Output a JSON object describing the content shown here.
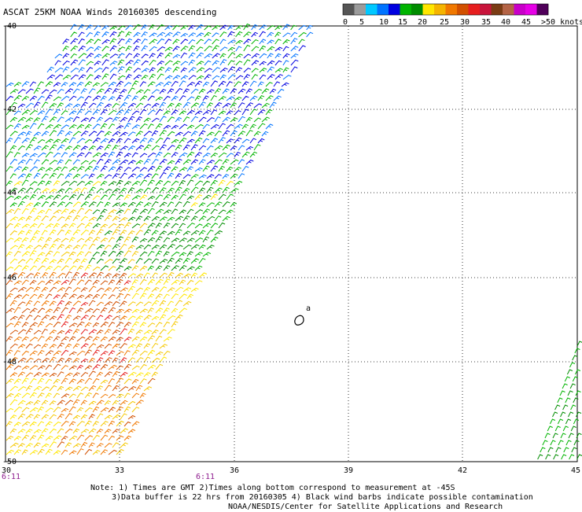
{
  "title": "ASCAT 25KM NOAA Winds 20160305 descending",
  "legend": {
    "labels": [
      "0",
      "5",
      "10",
      "15",
      "20",
      "25",
      "30",
      "35",
      "40",
      "45",
      ">50 knots"
    ],
    "colors": [
      "#555555",
      "#9b9b9b",
      "#00c8ff",
      "#0073ff",
      "#0000e0",
      "#00b400",
      "#008c00",
      "#ffe600",
      "#f5b400",
      "#f07800",
      "#d25000",
      "#e61e1e",
      "#c8143c",
      "#7a3c14",
      "#b46446",
      "#c800c8",
      "#e600e6",
      "#50005a"
    ]
  },
  "axes": {
    "lon_labels": [
      "30",
      "33",
      "36",
      "39",
      "42",
      "45"
    ],
    "lat_labels": [
      "-40",
      "-42",
      "-44",
      "-46",
      "-48",
      "-50"
    ]
  },
  "times": [
    "6:11",
    "6:11"
  ],
  "notes": {
    "line1": "Note: 1) Times are GMT 2)Times along bottom correspond to measurement at -45S",
    "line2": "3)Data buffer is 22 hrs from 20160305 4) Black wind barbs indicate possible contamination",
    "line3": "NOAA/NESDIS/Center for Satellite Applications and Research"
  },
  "island_label": "a"
}
